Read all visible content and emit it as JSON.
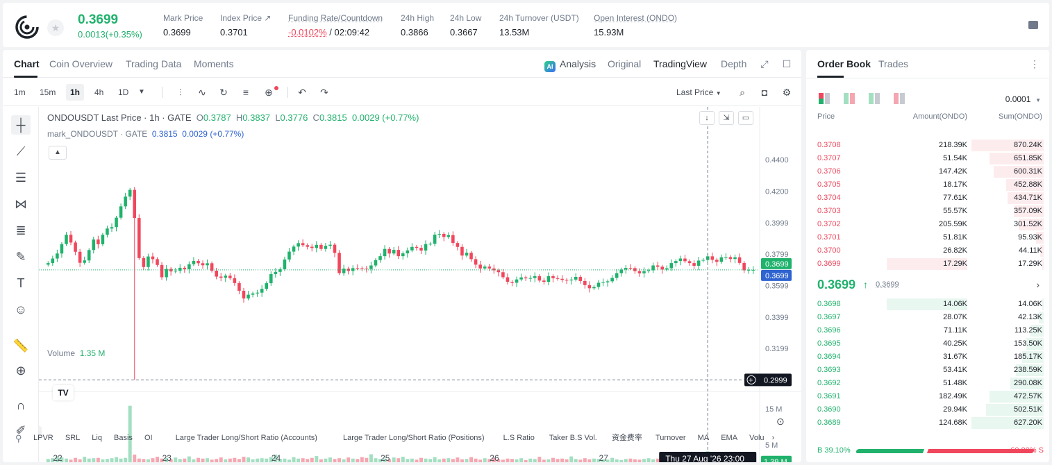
{
  "header": {
    "last_price": "0.3699",
    "change": "0.0013(+0.35%)",
    "stats": [
      {
        "label": "Mark Price",
        "value": "0.3699"
      },
      {
        "label": "Index Price ↗",
        "value": "0.3701"
      },
      {
        "label": "Funding Rate/Countdown",
        "value_rate": "-0.0102%",
        "value_countdown": "/ 02:09:42"
      },
      {
        "label": "24h High",
        "value": "0.3866"
      },
      {
        "label": "24h Low",
        "value": "0.3667"
      },
      {
        "label": "24h Turnover (USDT)",
        "value": "13.53M"
      },
      {
        "label": "Open Interest (ONDO)",
        "value": "15.93M"
      }
    ]
  },
  "chart_tabs": [
    "Chart",
    "Coin Overview",
    "Trading Data",
    "Moments"
  ],
  "view_tabs": {
    "ai_badge": "AI",
    "analysis": "Analysis",
    "original": "Original",
    "tradingview": "TradingView",
    "depth": "Depth"
  },
  "timeframes": [
    "1m",
    "15m",
    "1h",
    "4h",
    "1D"
  ],
  "active_timeframe": "1h",
  "last_price_select": "Last Price",
  "legend": {
    "symbol": "ONDOUSDT Last Price · 1h · GATE",
    "o_label": "O",
    "o": "0.3787",
    "h_label": "H",
    "h": "0.3837",
    "l_label": "L",
    "l": "0.3776",
    "c_label": "C",
    "c": "0.3815",
    "chg": "0.0029 (+0.77%)",
    "mark_symbol": "mark_ONDOUSDT · GATE",
    "mark_price": "0.3815",
    "mark_chg": "0.0029 (+0.77%)"
  },
  "volume_legend": {
    "label": "Volume",
    "value": "1.35 M"
  },
  "chart_data": {
    "type": "candlestick",
    "price_ticks": [
      "0.4400",
      "0.4200",
      "0.3999",
      "0.3799",
      "0.3599",
      "0.3399",
      "0.3199"
    ],
    "price_tick_values": [
      0.44,
      0.42,
      0.3999,
      0.3799,
      0.3599,
      0.3399,
      0.3199
    ],
    "ylim": [
      0.2952,
      0.4418
    ],
    "volume_ticks": [
      "15 M",
      "5 M"
    ],
    "volume_tick_values": [
      15,
      5
    ],
    "volume_ylim": [
      0,
      19
    ],
    "x_ticks": [
      "22",
      "23",
      "24",
      "25",
      "26",
      "27"
    ],
    "x_tick_indexes": [
      2,
      26,
      50,
      74,
      98,
      122
    ],
    "crosshair_label": "Thu 27 Aug '26   23:00",
    "crosshair_index": 145,
    "crosshair_price_label": "0.2999",
    "crosshair_price": 0.2999,
    "last_price_label": "0.3699",
    "mark_price_label": "0.3699",
    "current_price": 0.3699,
    "volume_current_label": "1.39 M",
    "close": [
      0.3742,
      0.3771,
      0.3803,
      0.3863,
      0.3922,
      0.3873,
      0.3814,
      0.3744,
      0.3759,
      0.3825,
      0.3892,
      0.3862,
      0.3922,
      0.3962,
      0.3971,
      0.4031,
      0.4103,
      0.4165,
      0.4208,
      0.4029,
      0.3774,
      0.3717,
      0.3784,
      0.3767,
      0.373,
      0.3652,
      0.3705,
      0.3689,
      0.3693,
      0.3712,
      0.3703,
      0.3735,
      0.3756,
      0.3741,
      0.3728,
      0.3741,
      0.3694,
      0.3656,
      0.3649,
      0.3662,
      0.3646,
      0.3615,
      0.3566,
      0.3517,
      0.3541,
      0.3549,
      0.3554,
      0.3578,
      0.3614,
      0.3672,
      0.3686,
      0.3703,
      0.3765,
      0.3815,
      0.3847,
      0.3869,
      0.3856,
      0.3846,
      0.3838,
      0.3858,
      0.3832,
      0.3852,
      0.3859,
      0.3807,
      0.3678,
      0.3707,
      0.3692,
      0.371,
      0.3709,
      0.3707,
      0.3704,
      0.3727,
      0.3761,
      0.3786,
      0.3832,
      0.3803,
      0.3826,
      0.3786,
      0.3804,
      0.3823,
      0.3845,
      0.3839,
      0.3822,
      0.3863,
      0.3865,
      0.3923,
      0.3928,
      0.3908,
      0.392,
      0.387,
      0.3845,
      0.379,
      0.3808,
      0.3767,
      0.3732,
      0.3708,
      0.372,
      0.3708,
      0.3696,
      0.3684,
      0.3652,
      0.3623,
      0.3617,
      0.3638,
      0.3651,
      0.3645,
      0.3647,
      0.3659,
      0.3631,
      0.3623,
      0.3659,
      0.3646,
      0.3642,
      0.3635,
      0.3632,
      0.3637,
      0.3654,
      0.3628,
      0.3602,
      0.3582,
      0.359,
      0.3617,
      0.362,
      0.3626,
      0.3648,
      0.3678,
      0.3701,
      0.3711,
      0.371,
      0.3691,
      0.3677,
      0.3691,
      0.3696,
      0.3727,
      0.3719,
      0.3701,
      0.3709,
      0.3742,
      0.3755,
      0.3771,
      0.3754,
      0.3742,
      0.3725,
      0.3758,
      0.3762,
      0.3785,
      0.3763,
      0.375,
      0.3779,
      0.378,
      0.3768,
      0.3779,
      0.3743,
      0.3696,
      0.3699,
      0.3699
    ],
    "volume": [
      1.1,
      1.3,
      1.8,
      1.5,
      1.2,
      0.9,
      1.4,
      1.0,
      1.7,
      1.2,
      1.3,
      1.4,
      1.0,
      1.1,
      1.3,
      1.6,
      1.2,
      1.4,
      15.8,
      2.3,
      1.2,
      1.1,
      1.0,
      1.3,
      1.7,
      1.2,
      1.4,
      1.0,
      1.5,
      1.1,
      1.2,
      1.8,
      1.0,
      1.4,
      1.2,
      1.3,
      0.9,
      1.1,
      1.5,
      1.0,
      1.2,
      1.4,
      1.1,
      1.7,
      1.5,
      1.0,
      1.2,
      1.3,
      1.2,
      1.6,
      2.3,
      1.1,
      1.2,
      0.9,
      1.6,
      1.2,
      1.3,
      1.1,
      1.4,
      1.9,
      1.0,
      1.2,
      1.5,
      1.1,
      1.3,
      1.0,
      1.5,
      1.2,
      1.1,
      1.6,
      1.4,
      2.4,
      1.3,
      1.1,
      1.2,
      1.0,
      1.5,
      1.3,
      1.7,
      1.1,
      1.2,
      0.9,
      1.4,
      1.2,
      1.1,
      1.6,
      1.0,
      1.2,
      1.3,
      1.1,
      1.5,
      1.0,
      1.1,
      1.6,
      1.2,
      0.9,
      1.3,
      1.1,
      1.4,
      1.0,
      0.9,
      1.2,
      1.1,
      1.0,
      1.3,
      0.8,
      1.2,
      1.1,
      1.7,
      0.9,
      1.0,
      1.4,
      1.1,
      1.2,
      1.0,
      1.8,
      1.1,
      0.9,
      1.3,
      1.0,
      1.2,
      1.1,
      1.0,
      0.9,
      1.4,
      1.0,
      0.8,
      1.1,
      1.2,
      1.0,
      0.9,
      1.1,
      1.3,
      1.0,
      1.2,
      1.6,
      1.0,
      1.1,
      2.5,
      1.2,
      1.3,
      1.8,
      1.4,
      2.2,
      1.1,
      3.2,
      1.6,
      1.4,
      1.9,
      1.3,
      1.2,
      2.1,
      1.6,
      1.5,
      1.2,
      1.4
    ]
  },
  "indicators": [
    "LPVR",
    "SRL",
    "Liq",
    "Basis",
    "OI",
    "Large Trader Long/Short Ratio (Accounts)",
    "Large Trader Long/Short Ratio (Positions)",
    "L.S Ratio",
    "Taker B.S Vol.",
    "资金费率",
    "Turnover",
    "MA",
    "EMA",
    "Volu"
  ],
  "orderbook": {
    "tabs": [
      "Order Book",
      "Trades"
    ],
    "precision": "0.0001",
    "headers": {
      "price": "Price",
      "amount": "Amount(ONDO)",
      "sum": "Sum(ONDO)"
    },
    "asks": [
      {
        "price": "0.3708",
        "amount": "218.39K",
        "sum": "870.24K",
        "depth": 1.0,
        "amt_depth": 0
      },
      {
        "price": "0.3707",
        "amount": "51.54K",
        "sum": "651.85K",
        "depth": 0.749,
        "amt_depth": 0
      },
      {
        "price": "0.3706",
        "amount": "147.42K",
        "sum": "600.31K",
        "depth": 0.69,
        "amt_depth": 0
      },
      {
        "price": "0.3705",
        "amount": "18.17K",
        "sum": "452.88K",
        "depth": 0.52,
        "amt_depth": 0
      },
      {
        "price": "0.3704",
        "amount": "77.61K",
        "sum": "434.71K",
        "depth": 0.5,
        "amt_depth": 0
      },
      {
        "price": "0.3703",
        "amount": "55.57K",
        "sum": "357.09K",
        "depth": 0.41,
        "amt_depth": 0
      },
      {
        "price": "0.3702",
        "amount": "205.59K",
        "sum": "301.52K",
        "depth": 0.346,
        "amt_depth": 0
      },
      {
        "price": "0.3701",
        "amount": "51.81K",
        "sum": "95.93K",
        "depth": 0.11,
        "amt_depth": 0
      },
      {
        "price": "0.3700",
        "amount": "26.82K",
        "sum": "44.11K",
        "depth": 0.05,
        "amt_depth": 0
      },
      {
        "price": "0.3699",
        "amount": "17.29K",
        "sum": "17.29K",
        "depth": 0.02,
        "amt_depth": 1
      }
    ],
    "mid": {
      "price": "0.3699",
      "arrow": "↑",
      "mark": "0.3699",
      "chevron": "›"
    },
    "bids": [
      {
        "price": "0.3698",
        "amount": "14.06K",
        "sum": "14.06K",
        "depth": 0.02,
        "amt_depth": 1
      },
      {
        "price": "0.3697",
        "amount": "28.07K",
        "sum": "42.13K",
        "depth": 0.07,
        "amt_depth": 0
      },
      {
        "price": "0.3696",
        "amount": "71.11K",
        "sum": "113.25K",
        "depth": 0.18,
        "amt_depth": 0
      },
      {
        "price": "0.3695",
        "amount": "40.25K",
        "sum": "153.50K",
        "depth": 0.24,
        "amt_depth": 0
      },
      {
        "price": "0.3694",
        "amount": "31.67K",
        "sum": "185.17K",
        "depth": 0.3,
        "amt_depth": 0
      },
      {
        "price": "0.3693",
        "amount": "53.41K",
        "sum": "238.59K",
        "depth": 0.38,
        "amt_depth": 0
      },
      {
        "price": "0.3692",
        "amount": "51.48K",
        "sum": "290.08K",
        "depth": 0.46,
        "amt_depth": 0
      },
      {
        "price": "0.3691",
        "amount": "182.49K",
        "sum": "472.57K",
        "depth": 0.75,
        "amt_depth": 0
      },
      {
        "price": "0.3690",
        "amount": "29.94K",
        "sum": "502.51K",
        "depth": 0.8,
        "amt_depth": 0
      },
      {
        "price": "0.3689",
        "amount": "124.68K",
        "sum": "627.20K",
        "depth": 1.0,
        "amt_depth": 0
      }
    ],
    "buy_ratio": "B 39.10%",
    "sell_ratio": "60.90% S",
    "buy_fraction": 0.391
  },
  "colors": {
    "up": "#20b26c",
    "down": "#f0475d",
    "up_vol": "#a3dfc1",
    "down_vol": "#f5a7b1",
    "mark_blue": "#2f64d0"
  }
}
